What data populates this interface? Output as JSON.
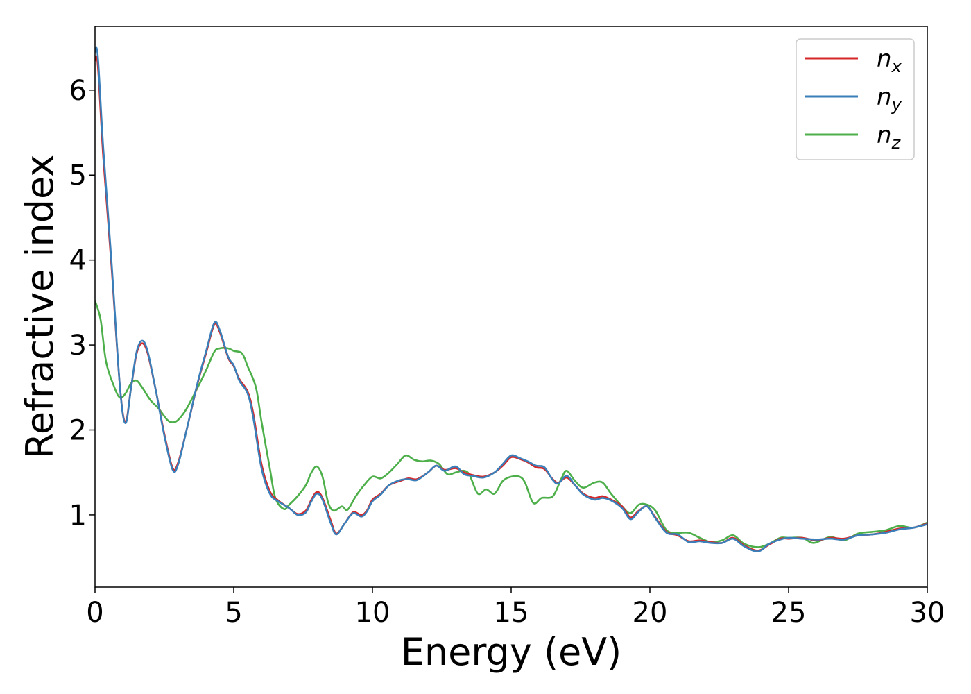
{
  "chart_data": {
    "type": "line",
    "title": "",
    "xlabel": "Energy (eV)",
    "ylabel": "Refractive index",
    "xlim": [
      0,
      30
    ],
    "ylim": [
      0.15,
      6.75
    ],
    "xticks": [
      0,
      5,
      10,
      15,
      20,
      25,
      30
    ],
    "xtick_labels": [
      "0",
      "5",
      "10",
      "15",
      "20",
      "25",
      "30"
    ],
    "yticks": [
      1,
      2,
      3,
      4,
      5,
      6
    ],
    "ytick_labels": [
      "1",
      "2",
      "3",
      "4",
      "5",
      "6"
    ],
    "grid": false,
    "legend_position": "top-right",
    "series": [
      {
        "name": "n_x",
        "label_main": "n",
        "label_sub": "x",
        "color": "#d62728",
        "points": [
          [
            0,
            6.35
          ],
          [
            0.1,
            6.3
          ],
          [
            0.3,
            5.2
          ],
          [
            0.6,
            3.9
          ],
          [
            0.9,
            2.5
          ],
          [
            1.1,
            2.1
          ],
          [
            1.3,
            2.5
          ],
          [
            1.5,
            2.9
          ],
          [
            1.7,
            3.02
          ],
          [
            1.9,
            2.9
          ],
          [
            2.2,
            2.45
          ],
          [
            2.5,
            1.95
          ],
          [
            2.8,
            1.55
          ],
          [
            3.0,
            1.62
          ],
          [
            3.3,
            2.0
          ],
          [
            3.7,
            2.55
          ],
          [
            4.0,
            2.9
          ],
          [
            4.3,
            3.24
          ],
          [
            4.5,
            3.15
          ],
          [
            4.8,
            2.85
          ],
          [
            5.0,
            2.75
          ],
          [
            5.2,
            2.6
          ],
          [
            5.5,
            2.45
          ],
          [
            5.7,
            2.2
          ],
          [
            6.0,
            1.6
          ],
          [
            6.3,
            1.28
          ],
          [
            6.6,
            1.17
          ],
          [
            7.0,
            1.08
          ],
          [
            7.3,
            1.01
          ],
          [
            7.6,
            1.05
          ],
          [
            7.8,
            1.18
          ],
          [
            8.0,
            1.27
          ],
          [
            8.2,
            1.2
          ],
          [
            8.5,
            0.93
          ],
          [
            8.7,
            0.78
          ],
          [
            9.0,
            0.9
          ],
          [
            9.3,
            1.03
          ],
          [
            9.6,
            1.0
          ],
          [
            9.8,
            1.05
          ],
          [
            10.0,
            1.18
          ],
          [
            10.3,
            1.25
          ],
          [
            10.6,
            1.35
          ],
          [
            11.0,
            1.4
          ],
          [
            11.3,
            1.43
          ],
          [
            11.6,
            1.42
          ],
          [
            12.0,
            1.5
          ],
          [
            12.3,
            1.58
          ],
          [
            12.6,
            1.53
          ],
          [
            13.0,
            1.55
          ],
          [
            13.3,
            1.5
          ],
          [
            13.6,
            1.47
          ],
          [
            14.0,
            1.45
          ],
          [
            14.4,
            1.5
          ],
          [
            14.7,
            1.58
          ],
          [
            15.0,
            1.68
          ],
          [
            15.3,
            1.66
          ],
          [
            15.6,
            1.62
          ],
          [
            15.9,
            1.56
          ],
          [
            16.2,
            1.54
          ],
          [
            16.5,
            1.42
          ],
          [
            16.7,
            1.38
          ],
          [
            17.0,
            1.44
          ],
          [
            17.3,
            1.35
          ],
          [
            17.6,
            1.25
          ],
          [
            18.0,
            1.2
          ],
          [
            18.3,
            1.22
          ],
          [
            18.6,
            1.18
          ],
          [
            19.0,
            1.1
          ],
          [
            19.3,
            0.97
          ],
          [
            19.6,
            1.05
          ],
          [
            19.9,
            1.1
          ],
          [
            20.2,
            0.97
          ],
          [
            20.6,
            0.8
          ],
          [
            21.0,
            0.76
          ],
          [
            21.4,
            0.69
          ],
          [
            21.8,
            0.7
          ],
          [
            22.2,
            0.68
          ],
          [
            22.6,
            0.67
          ],
          [
            23.0,
            0.73
          ],
          [
            23.4,
            0.64
          ],
          [
            23.9,
            0.58
          ],
          [
            24.3,
            0.65
          ],
          [
            24.7,
            0.72
          ],
          [
            25.0,
            0.72
          ],
          [
            25.5,
            0.73
          ],
          [
            26.0,
            0.7
          ],
          [
            26.5,
            0.73
          ],
          [
            27.0,
            0.72
          ],
          [
            27.5,
            0.76
          ],
          [
            28.0,
            0.77
          ],
          [
            28.5,
            0.8
          ],
          [
            29.0,
            0.84
          ],
          [
            29.5,
            0.85
          ],
          [
            30.0,
            0.9
          ]
        ]
      },
      {
        "name": "n_y",
        "label_main": "n",
        "label_sub": "y",
        "color": "#3a7fb9",
        "points": [
          [
            0,
            6.45
          ],
          [
            0.1,
            6.4
          ],
          [
            0.3,
            5.3
          ],
          [
            0.6,
            3.95
          ],
          [
            0.9,
            2.5
          ],
          [
            1.1,
            2.08
          ],
          [
            1.3,
            2.5
          ],
          [
            1.5,
            2.92
          ],
          [
            1.7,
            3.05
          ],
          [
            1.9,
            2.92
          ],
          [
            2.2,
            2.45
          ],
          [
            2.5,
            1.93
          ],
          [
            2.8,
            1.53
          ],
          [
            3.0,
            1.6
          ],
          [
            3.3,
            2.0
          ],
          [
            3.7,
            2.56
          ],
          [
            4.0,
            2.92
          ],
          [
            4.3,
            3.26
          ],
          [
            4.5,
            3.17
          ],
          [
            4.8,
            2.86
          ],
          [
            5.0,
            2.76
          ],
          [
            5.2,
            2.58
          ],
          [
            5.5,
            2.43
          ],
          [
            5.7,
            2.15
          ],
          [
            6.0,
            1.55
          ],
          [
            6.3,
            1.25
          ],
          [
            6.6,
            1.16
          ],
          [
            7.0,
            1.08
          ],
          [
            7.3,
            1.0
          ],
          [
            7.6,
            1.03
          ],
          [
            7.8,
            1.16
          ],
          [
            8.0,
            1.25
          ],
          [
            8.2,
            1.18
          ],
          [
            8.5,
            0.9
          ],
          [
            8.7,
            0.77
          ],
          [
            9.0,
            0.9
          ],
          [
            9.3,
            1.02
          ],
          [
            9.6,
            0.98
          ],
          [
            9.8,
            1.04
          ],
          [
            10.0,
            1.16
          ],
          [
            10.3,
            1.24
          ],
          [
            10.6,
            1.35
          ],
          [
            11.0,
            1.41
          ],
          [
            11.3,
            1.42
          ],
          [
            11.6,
            1.41
          ],
          [
            12.0,
            1.5
          ],
          [
            12.3,
            1.58
          ],
          [
            12.6,
            1.52
          ],
          [
            13.0,
            1.57
          ],
          [
            13.3,
            1.48
          ],
          [
            13.6,
            1.46
          ],
          [
            14.0,
            1.44
          ],
          [
            14.4,
            1.5
          ],
          [
            14.7,
            1.6
          ],
          [
            15.0,
            1.7
          ],
          [
            15.3,
            1.67
          ],
          [
            15.6,
            1.63
          ],
          [
            15.9,
            1.58
          ],
          [
            16.2,
            1.56
          ],
          [
            16.5,
            1.41
          ],
          [
            16.7,
            1.37
          ],
          [
            17.0,
            1.46
          ],
          [
            17.3,
            1.35
          ],
          [
            17.6,
            1.24
          ],
          [
            18.0,
            1.18
          ],
          [
            18.3,
            1.2
          ],
          [
            18.6,
            1.17
          ],
          [
            19.0,
            1.08
          ],
          [
            19.3,
            0.95
          ],
          [
            19.6,
            1.04
          ],
          [
            19.9,
            1.1
          ],
          [
            20.2,
            0.96
          ],
          [
            20.6,
            0.79
          ],
          [
            21.0,
            0.77
          ],
          [
            21.4,
            0.68
          ],
          [
            21.8,
            0.69
          ],
          [
            22.2,
            0.67
          ],
          [
            22.6,
            0.67
          ],
          [
            23.0,
            0.72
          ],
          [
            23.4,
            0.63
          ],
          [
            23.9,
            0.57
          ],
          [
            24.3,
            0.66
          ],
          [
            24.7,
            0.71
          ],
          [
            25.0,
            0.73
          ],
          [
            25.5,
            0.72
          ],
          [
            26.0,
            0.71
          ],
          [
            26.5,
            0.72
          ],
          [
            27.0,
            0.71
          ],
          [
            27.5,
            0.76
          ],
          [
            28.0,
            0.77
          ],
          [
            28.5,
            0.79
          ],
          [
            29.0,
            0.83
          ],
          [
            29.5,
            0.85
          ],
          [
            30.0,
            0.89
          ]
        ]
      },
      {
        "name": "n_z",
        "label_main": "n",
        "label_sub": "z",
        "color": "#4daf4a",
        "points": [
          [
            0,
            3.52
          ],
          [
            0.2,
            3.3
          ],
          [
            0.4,
            2.8
          ],
          [
            0.7,
            2.5
          ],
          [
            0.9,
            2.38
          ],
          [
            1.1,
            2.43
          ],
          [
            1.3,
            2.55
          ],
          [
            1.5,
            2.58
          ],
          [
            1.7,
            2.5
          ],
          [
            2.0,
            2.35
          ],
          [
            2.3,
            2.25
          ],
          [
            2.6,
            2.12
          ],
          [
            2.8,
            2.09
          ],
          [
            3.0,
            2.12
          ],
          [
            3.3,
            2.25
          ],
          [
            3.7,
            2.5
          ],
          [
            4.0,
            2.7
          ],
          [
            4.3,
            2.92
          ],
          [
            4.5,
            2.96
          ],
          [
            4.8,
            2.96
          ],
          [
            5.0,
            2.93
          ],
          [
            5.3,
            2.9
          ],
          [
            5.5,
            2.75
          ],
          [
            5.8,
            2.5
          ],
          [
            6.0,
            2.1
          ],
          [
            6.3,
            1.55
          ],
          [
            6.5,
            1.2
          ],
          [
            6.8,
            1.07
          ],
          [
            7.0,
            1.12
          ],
          [
            7.3,
            1.22
          ],
          [
            7.6,
            1.35
          ],
          [
            7.8,
            1.5
          ],
          [
            8.0,
            1.57
          ],
          [
            8.2,
            1.45
          ],
          [
            8.4,
            1.15
          ],
          [
            8.6,
            1.05
          ],
          [
            8.9,
            1.1
          ],
          [
            9.1,
            1.06
          ],
          [
            9.4,
            1.22
          ],
          [
            9.7,
            1.35
          ],
          [
            10.0,
            1.45
          ],
          [
            10.3,
            1.43
          ],
          [
            10.6,
            1.5
          ],
          [
            10.9,
            1.6
          ],
          [
            11.2,
            1.7
          ],
          [
            11.5,
            1.65
          ],
          [
            11.8,
            1.63
          ],
          [
            12.1,
            1.64
          ],
          [
            12.4,
            1.6
          ],
          [
            12.7,
            1.48
          ],
          [
            13.0,
            1.5
          ],
          [
            13.3,
            1.52
          ],
          [
            13.5,
            1.47
          ],
          [
            13.8,
            1.25
          ],
          [
            14.1,
            1.3
          ],
          [
            14.4,
            1.25
          ],
          [
            14.7,
            1.4
          ],
          [
            15.0,
            1.45
          ],
          [
            15.3,
            1.45
          ],
          [
            15.5,
            1.38
          ],
          [
            15.8,
            1.14
          ],
          [
            16.1,
            1.2
          ],
          [
            16.5,
            1.22
          ],
          [
            16.8,
            1.42
          ],
          [
            17.0,
            1.52
          ],
          [
            17.3,
            1.4
          ],
          [
            17.6,
            1.32
          ],
          [
            18.0,
            1.38
          ],
          [
            18.3,
            1.38
          ],
          [
            18.6,
            1.25
          ],
          [
            19.0,
            1.1
          ],
          [
            19.3,
            1.02
          ],
          [
            19.6,
            1.12
          ],
          [
            19.9,
            1.12
          ],
          [
            20.2,
            1.05
          ],
          [
            20.6,
            0.82
          ],
          [
            21.0,
            0.79
          ],
          [
            21.4,
            0.79
          ],
          [
            21.8,
            0.73
          ],
          [
            22.2,
            0.68
          ],
          [
            22.6,
            0.7
          ],
          [
            23.0,
            0.76
          ],
          [
            23.4,
            0.66
          ],
          [
            23.9,
            0.62
          ],
          [
            24.3,
            0.66
          ],
          [
            24.7,
            0.73
          ],
          [
            25.0,
            0.73
          ],
          [
            25.5,
            0.73
          ],
          [
            25.9,
            0.67
          ],
          [
            26.5,
            0.74
          ],
          [
            27.0,
            0.7
          ],
          [
            27.5,
            0.78
          ],
          [
            28.0,
            0.8
          ],
          [
            28.5,
            0.82
          ],
          [
            29.0,
            0.87
          ],
          [
            29.5,
            0.85
          ],
          [
            30.0,
            0.91
          ]
        ]
      }
    ]
  }
}
